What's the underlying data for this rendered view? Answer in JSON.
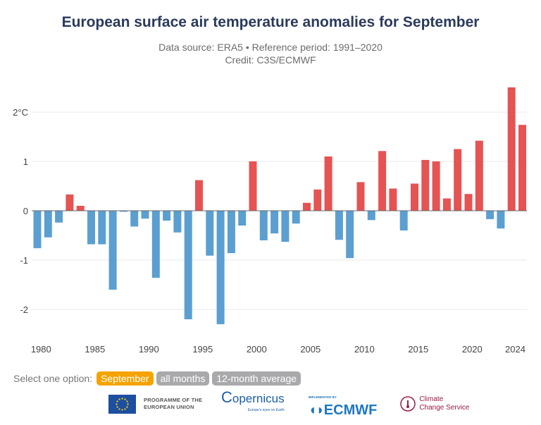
{
  "title": "European surface air temperature anomalies for September",
  "subtitle": "Data source: ERA5 • Reference period: 1991–2020",
  "credit": "Credit: C3S/ECMWF",
  "chart_data": {
    "type": "bar",
    "title": "European surface air temperature anomalies for September",
    "ylabel": "",
    "xlabel": "",
    "ylim": [
      -2.6,
      2.6
    ],
    "y_ticks": [
      {
        "v": -2,
        "label": "-2"
      },
      {
        "v": -1,
        "label": "-1"
      },
      {
        "v": 0,
        "label": "0"
      },
      {
        "v": 1,
        "label": "1"
      },
      {
        "v": 2,
        "label": "2°C"
      }
    ],
    "x_ticks": [
      "1980",
      "1985",
      "1990",
      "1995",
      "2000",
      "2005",
      "2010",
      "2015",
      "2020",
      "2024"
    ],
    "grid": true,
    "colors": {
      "positive": "#e55353",
      "negative": "#5b9fd1"
    },
    "categories": [
      1979,
      1980,
      1981,
      1982,
      1983,
      1984,
      1985,
      1986,
      1987,
      1988,
      1989,
      1990,
      1991,
      1992,
      1993,
      1994,
      1995,
      1996,
      1997,
      1998,
      1999,
      2000,
      2001,
      2002,
      2003,
      2004,
      2005,
      2006,
      2007,
      2008,
      2009,
      2010,
      2011,
      2012,
      2013,
      2014,
      2015,
      2016,
      2017,
      2018,
      2019,
      2020,
      2021,
      2022,
      2023,
      2024
    ],
    "values": [
      -0.76,
      -0.54,
      -0.24,
      0.33,
      0.1,
      -0.68,
      -0.68,
      -1.6,
      -0.02,
      -0.32,
      -0.16,
      -1.36,
      -0.2,
      -0.44,
      -2.2,
      0.62,
      -0.91,
      -2.3,
      -0.86,
      -0.3,
      1.0,
      -0.6,
      -0.46,
      -0.63,
      -0.26,
      0.16,
      0.43,
      1.1,
      -0.59,
      -0.96,
      0.58,
      -0.19,
      1.21,
      0.45,
      -0.4,
      0.55,
      1.03,
      1.0,
      0.25,
      1.25,
      0.34,
      1.42,
      -0.17,
      -0.36,
      2.5,
      1.74
    ]
  },
  "options": {
    "label": "Select one option:",
    "items": [
      {
        "label": "September",
        "active": true
      },
      {
        "label": "all months",
        "active": false
      },
      {
        "label": "12-month average",
        "active": false
      }
    ]
  },
  "logos": {
    "eu": "PROGRAMME OF THE EUROPEAN UNION",
    "copernicus": "opernicus",
    "copernicus_tagline": "Europe's eyes on Earth",
    "ecmwf_pre": "IMPLEMENTED BY",
    "ecmwf": "ECMWF",
    "c3s_1": "Climate",
    "c3s_2": "Change Service"
  }
}
